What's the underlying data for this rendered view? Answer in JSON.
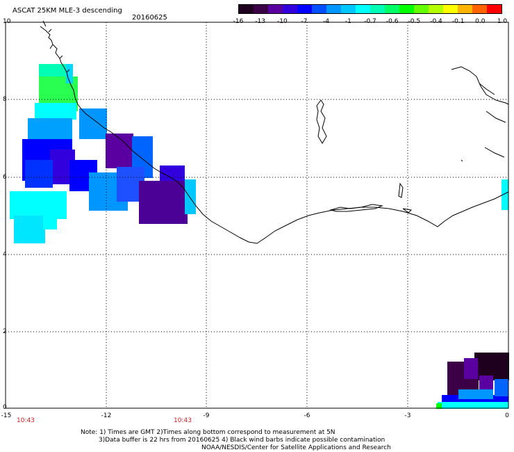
{
  "header": {
    "title": "ASCAT 25KM MLE-3 descending",
    "date": "20160625"
  },
  "colorbar": {
    "labels": [
      "-16",
      "-13",
      "-10",
      "-7",
      "-4",
      "-1",
      "-0.7",
      "-0.6",
      "-0.5",
      "-0.4",
      "-0.1",
      "0.0",
      "1.0"
    ],
    "colors": [
      "#1e001e",
      "#3c0046",
      "#5a00a0",
      "#3200dc",
      "#0000ff",
      "#0050ff",
      "#0096ff",
      "#00c8ff",
      "#00ffff",
      "#00ffb4",
      "#00ff64",
      "#00ff00",
      "#64ff00",
      "#b4ff00",
      "#ffff00",
      "#ffb400",
      "#ff6400",
      "#ff0000"
    ]
  },
  "axes": {
    "y_ticks": [
      "10",
      "8",
      "6",
      "4",
      "2",
      "0"
    ],
    "x_ticks": [
      "-15",
      "-12",
      "-9",
      "-6",
      "-3",
      "0"
    ],
    "times": [
      "10:43",
      "10:43"
    ]
  },
  "notes": [
    "Note: 1) Times are GMT 2)Times along bottom correspond to measurement at 5N",
    "3)Data buffer is 22 hrs from 20160625 4) Black wind barbs indicate possible contamination",
    "NOAA/NESDIS/Center for Satellite Applications and Research"
  ]
}
